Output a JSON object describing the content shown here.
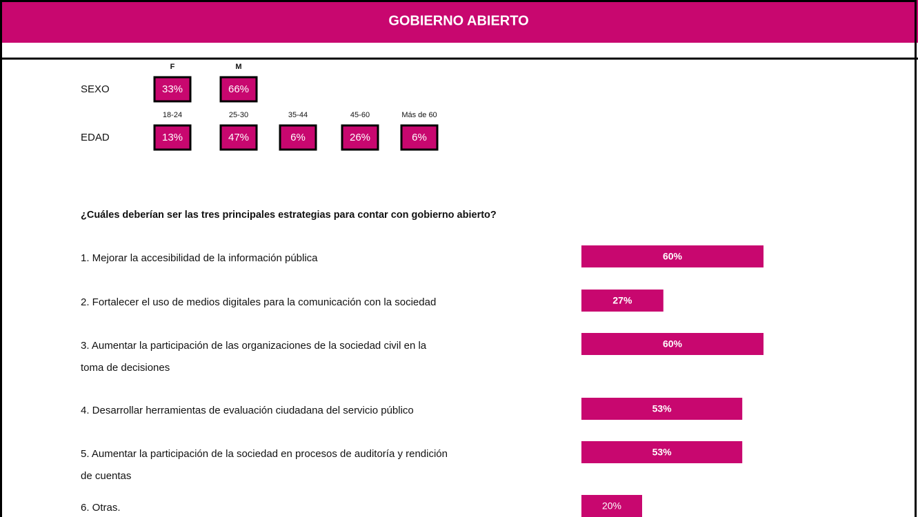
{
  "header": {
    "title": "GOBIERNO ABIERTO"
  },
  "sexo": {
    "label": "SEXO",
    "groups": [
      {
        "name": "F",
        "value": "33%"
      },
      {
        "name": "M",
        "value": "66%"
      }
    ]
  },
  "edad": {
    "label": "EDAD",
    "groups": [
      {
        "name": "18-24",
        "value": "13%"
      },
      {
        "name": "25-30",
        "value": "47%"
      },
      {
        "name": "35-44",
        "value": "6%"
      },
      {
        "name": "45-60",
        "value": "26%"
      },
      {
        "name": "Más de 60",
        "value": "6%"
      }
    ]
  },
  "question": {
    "title": "¿Cuáles deberían ser las tres principales estrategias para contar con gobierno abierto?",
    "color": "#c8076f",
    "items": [
      {
        "lines": [
          "1. Mejorar la accesibilidad de la información pública"
        ],
        "value": 60,
        "value_label": "60%"
      },
      {
        "lines": [
          "2. Fortalecer el uso de medios digitales para la comunicación con la sociedad"
        ],
        "value": 27,
        "value_label": "27%"
      },
      {
        "lines": [
          "3. Aumentar la participación de las organizaciones de la sociedad civil en la",
          "toma de decisiones"
        ],
        "value": 60,
        "value_label": "60%"
      },
      {
        "lines": [
          "4. Desarrollar herramientas de evaluación ciudadana del servicio público"
        ],
        "value": 53,
        "value_label": "53%"
      },
      {
        "lines": [
          "5. Aumentar la participación de la sociedad en procesos de auditoría y rendición",
          "de cuentas"
        ],
        "value": 53,
        "value_label": "53%"
      },
      {
        "lines": [
          "6. Otras."
        ],
        "value": 20,
        "value_label": "20%"
      }
    ]
  }
}
